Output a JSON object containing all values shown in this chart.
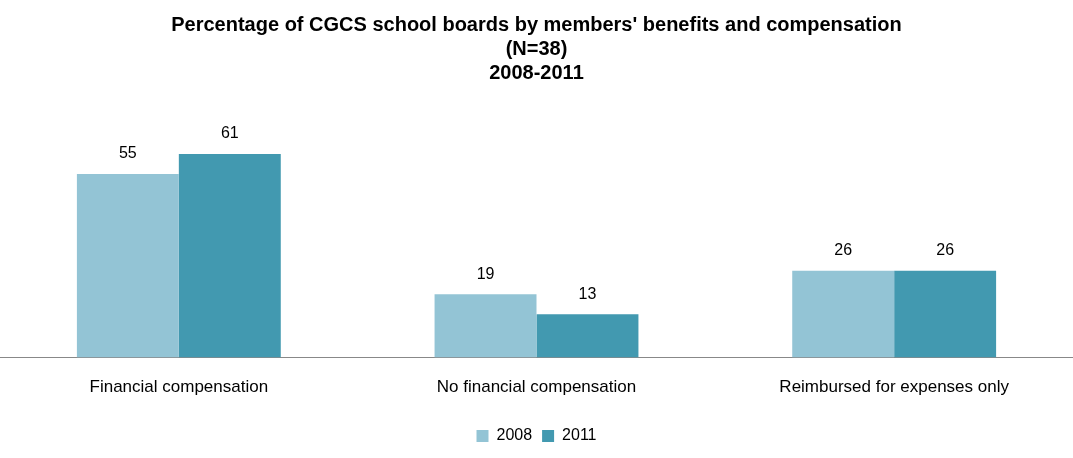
{
  "chart_data": {
    "type": "bar",
    "title": "Percentage of CGCS school boards by members' benefits and compensation (N=38)\n2008-2011",
    "categories": [
      "Financial compensation",
      "No financial compensation",
      "Reimbursed for expenses only"
    ],
    "series": [
      {
        "name": "2008",
        "color": "#93c4d5",
        "values": [
          55,
          19,
          26
        ]
      },
      {
        "name": "2011",
        "color": "#4299b0",
        "values": [
          61,
          13,
          26
        ]
      }
    ],
    "data_labels": true,
    "legend": "bottom",
    "grid": false
  }
}
